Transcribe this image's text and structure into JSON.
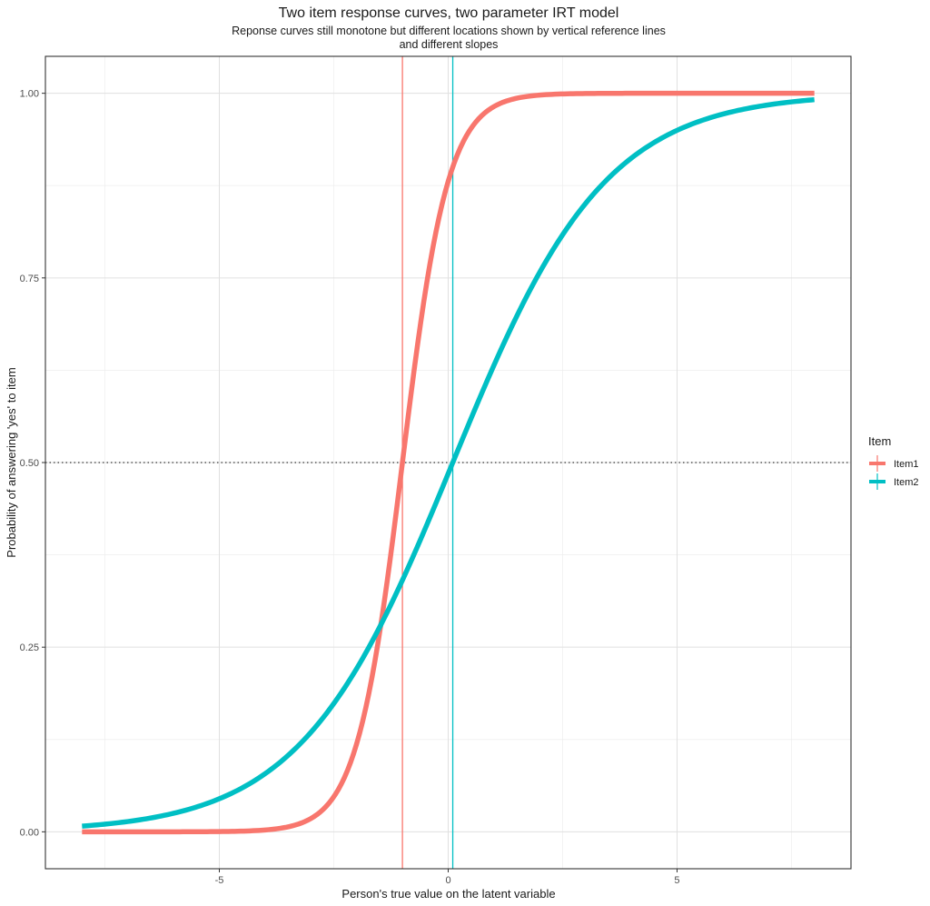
{
  "chart_data": {
    "type": "line",
    "title": "Two item response curves, two parameter IRT model",
    "subtitle_lines": [
      "Reponse curves still monotone but different locations shown by vertical reference lines",
      "and different slopes"
    ],
    "xlabel": "Person's true value on the latent variable",
    "ylabel": "Probability of answering 'yes' to item",
    "xlim": [
      -8.8,
      8.8
    ],
    "ylim": [
      -0.05,
      1.05
    ],
    "x_ticks": [
      -5,
      0,
      5
    ],
    "x_tick_labels": [
      "-5",
      "0",
      "5"
    ],
    "y_ticks": [
      0,
      0.25,
      0.5,
      0.75,
      1
    ],
    "y_tick_labels": [
      "0.00",
      "0.25",
      "0.50",
      "0.75",
      "1.00"
    ],
    "grid": true,
    "hline": {
      "y": 0.5,
      "style": "dotted"
    },
    "x_range": [
      -8,
      8
    ],
    "legend": {
      "title": "Item",
      "position": "right",
      "entries": [
        "Item1",
        "Item2"
      ]
    },
    "series": [
      {
        "name": "Item1",
        "model": "2PL logistic",
        "location": -1,
        "slope": 2,
        "color": "#F8766D",
        "reference_line_x": -1
      },
      {
        "name": "Item2",
        "model": "2PL logistic",
        "location": 0.1,
        "slope": 0.6,
        "color": "#00BFC4",
        "reference_line_x": 0.1
      }
    ]
  }
}
